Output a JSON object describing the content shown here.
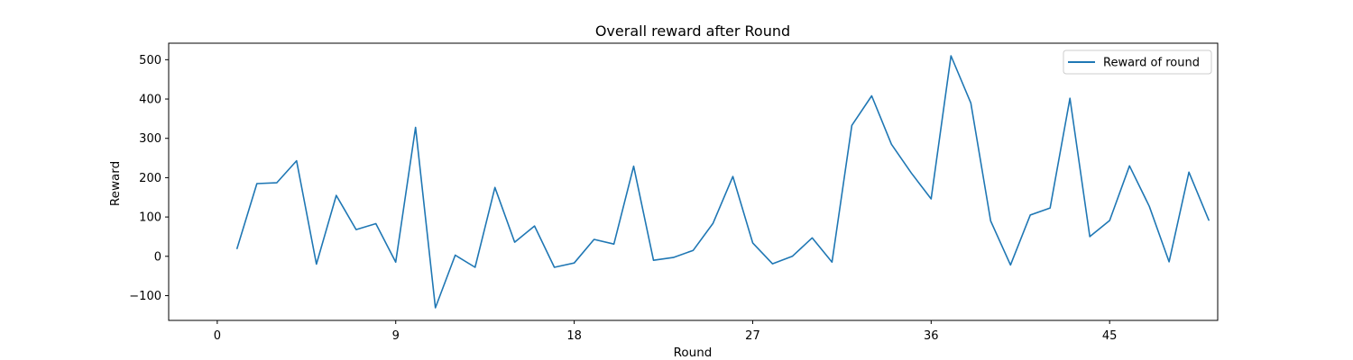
{
  "chart_data": {
    "type": "line",
    "title": "Overall reward after Round",
    "xlabel": "Round",
    "ylabel": "Reward",
    "xlim": [
      -2.45,
      50.45
    ],
    "ylim": [
      -163,
      542
    ],
    "xticks": [
      0,
      9,
      18,
      27,
      36,
      45
    ],
    "yticks": [
      -100,
      0,
      100,
      200,
      300,
      400,
      500
    ],
    "grid": false,
    "legend_position": "upper right",
    "series": [
      {
        "name": "Reward of round",
        "color": "#1f77b4",
        "x": [
          1,
          2,
          3,
          4,
          5,
          6,
          7,
          8,
          9,
          10,
          11,
          12,
          13,
          14,
          15,
          16,
          17,
          18,
          19,
          20,
          21,
          22,
          23,
          24,
          25,
          26,
          27,
          28,
          29,
          30,
          31,
          32,
          33,
          34,
          35,
          36,
          37,
          38,
          39,
          40,
          41,
          42,
          43,
          44,
          45,
          46,
          47,
          48,
          49,
          50
        ],
        "values": [
          20,
          185,
          187,
          243,
          -20,
          155,
          68,
          83,
          -15,
          328,
          -131,
          3,
          -28,
          175,
          36,
          77,
          -28,
          -17,
          43,
          31,
          229,
          -10,
          -3,
          15,
          84,
          203,
          34,
          -19,
          0,
          47,
          -15,
          333,
          408,
          285,
          212,
          146,
          510,
          390,
          90,
          -22,
          105,
          123,
          402,
          50,
          91,
          230,
          127,
          -14,
          214,
          92
        ]
      }
    ]
  }
}
